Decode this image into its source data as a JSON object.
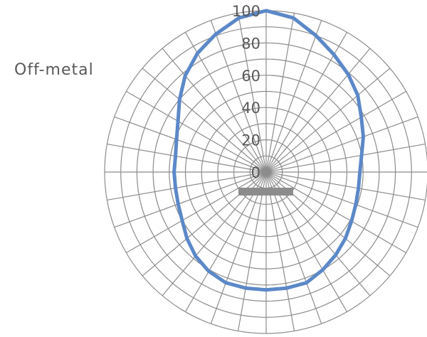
{
  "chart_data": {
    "type": "polar-line",
    "title": "",
    "annotation": "Off-metal",
    "radial_ticks": [
      0,
      20,
      40,
      60,
      80,
      100
    ],
    "rlim": [
      0,
      100
    ],
    "angular_divisions": 36,
    "grid": true,
    "series": [
      {
        "color": "#5b88c8",
        "angles_deg": [
          0,
          10,
          20,
          30,
          40,
          50,
          60,
          70,
          80,
          90,
          100,
          110,
          120,
          130,
          140,
          150,
          160,
          170,
          180,
          190,
          200,
          210,
          220,
          230,
          240,
          250,
          260,
          270,
          280,
          290,
          300,
          310,
          320,
          330,
          340,
          350
        ],
        "values": [
          100,
          97,
          90,
          84,
          79,
          74,
          68,
          64,
          60,
          58,
          58,
          59,
          61,
          64,
          67,
          70,
          73,
          73,
          73,
          73,
          73,
          71,
          68,
          64,
          60,
          58,
          57,
          57,
          57,
          59,
          63,
          70,
          78,
          85,
          91,
          97
        ]
      }
    ],
    "baseline_marker_color": "#8c8c8c"
  },
  "colors": {
    "grid": "#8c8c8c",
    "text": "#595959"
  }
}
